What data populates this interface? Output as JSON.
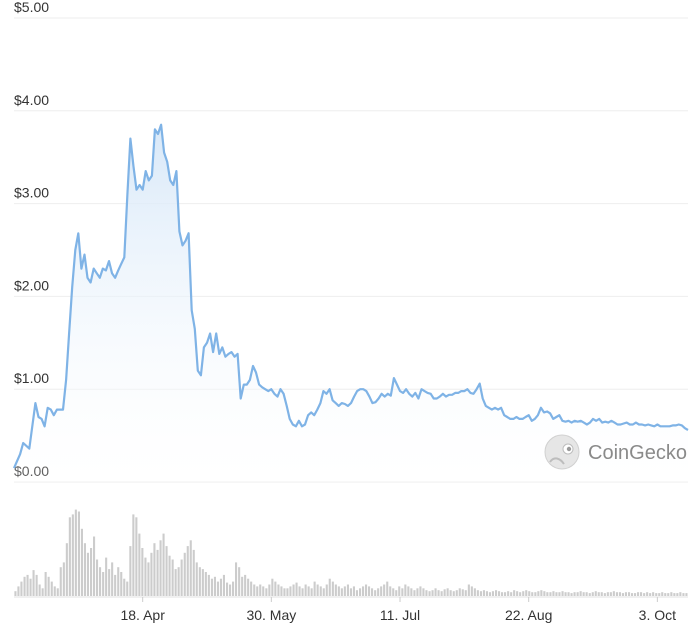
{
  "watermark": "CoinGecko",
  "chart_data": {
    "type": "area",
    "title": "",
    "xlabel": "",
    "ylabel": "",
    "y_tick_labels": [
      "$0.00",
      "$1.00",
      "$2.00",
      "$3.00",
      "$4.00",
      "$5.00"
    ],
    "y_ticks": [
      0,
      1,
      2,
      3,
      4,
      5
    ],
    "ylim": [
      0,
      5
    ],
    "x_tick_labels": [
      "18. Apr",
      "30. May",
      "11. Jul",
      "22. Aug",
      "3. Oct"
    ],
    "x_ticks_day": [
      42,
      84,
      126,
      168,
      210
    ],
    "x_range_days": [
      0,
      220
    ],
    "grid": true,
    "colors": {
      "line": "#7fb3e6",
      "area_top": "#d6e7f8",
      "volume": "#cccccc",
      "grid": "#eeeeee"
    },
    "series": [
      {
        "type": "line",
        "points": [
          [
            0,
            0.15
          ],
          [
            2,
            0.3
          ],
          [
            3,
            0.42
          ],
          [
            5,
            0.36
          ],
          [
            7,
            0.85
          ],
          [
            8,
            0.7
          ],
          [
            9,
            0.68
          ],
          [
            10,
            0.6
          ],
          [
            11,
            0.8
          ],
          [
            12,
            0.78
          ],
          [
            13,
            0.72
          ],
          [
            14,
            0.78
          ],
          [
            16,
            0.78
          ],
          [
            17,
            1.1
          ],
          [
            18,
            1.6
          ],
          [
            19,
            2.1
          ],
          [
            20,
            2.5
          ],
          [
            21,
            2.68
          ],
          [
            22,
            2.3
          ],
          [
            23,
            2.45
          ],
          [
            24,
            2.2
          ],
          [
            25,
            2.15
          ],
          [
            26,
            2.3
          ],
          [
            27,
            2.25
          ],
          [
            28,
            2.2
          ],
          [
            29,
            2.3
          ],
          [
            30,
            2.28
          ],
          [
            31,
            2.38
          ],
          [
            32,
            2.25
          ],
          [
            33,
            2.2
          ],
          [
            34,
            2.28
          ],
          [
            35,
            2.35
          ],
          [
            36,
            2.42
          ],
          [
            37,
            3.1
          ],
          [
            38,
            3.7
          ],
          [
            39,
            3.4
          ],
          [
            40,
            3.15
          ],
          [
            41,
            3.2
          ],
          [
            42,
            3.15
          ],
          [
            43,
            3.35
          ],
          [
            44,
            3.25
          ],
          [
            45,
            3.3
          ],
          [
            46,
            3.8
          ],
          [
            47,
            3.75
          ],
          [
            48,
            3.85
          ],
          [
            49,
            3.55
          ],
          [
            50,
            3.45
          ],
          [
            51,
            3.25
          ],
          [
            52,
            3.2
          ],
          [
            53,
            3.35
          ],
          [
            54,
            2.7
          ],
          [
            55,
            2.55
          ],
          [
            56,
            2.6
          ],
          [
            57,
            2.68
          ],
          [
            58,
            1.85
          ],
          [
            59,
            1.65
          ],
          [
            60,
            1.2
          ],
          [
            61,
            1.15
          ],
          [
            62,
            1.45
          ],
          [
            63,
            1.5
          ],
          [
            64,
            1.6
          ],
          [
            65,
            1.4
          ],
          [
            66,
            1.6
          ],
          [
            67,
            1.38
          ],
          [
            68,
            1.45
          ],
          [
            69,
            1.35
          ],
          [
            70,
            1.38
          ],
          [
            71,
            1.4
          ],
          [
            72,
            1.35
          ],
          [
            73,
            1.38
          ],
          [
            74,
            0.9
          ],
          [
            75,
            1.05
          ],
          [
            76,
            1.05
          ],
          [
            77,
            1.1
          ],
          [
            78,
            1.25
          ],
          [
            79,
            1.18
          ],
          [
            80,
            1.05
          ],
          [
            81,
            1.02
          ],
          [
            82,
            1.0
          ],
          [
            83,
            0.98
          ],
          [
            84,
            1.0
          ],
          [
            85,
            0.95
          ],
          [
            86,
            0.92
          ],
          [
            87,
            1.0
          ],
          [
            88,
            0.95
          ],
          [
            89,
            0.82
          ],
          [
            90,
            0.68
          ],
          [
            91,
            0.62
          ],
          [
            92,
            0.6
          ],
          [
            93,
            0.66
          ],
          [
            94,
            0.6
          ],
          [
            95,
            0.62
          ],
          [
            96,
            0.72
          ],
          [
            97,
            0.75
          ],
          [
            98,
            0.72
          ],
          [
            99,
            0.78
          ],
          [
            100,
            0.85
          ],
          [
            101,
            0.98
          ],
          [
            102,
            0.95
          ],
          [
            103,
            1.0
          ],
          [
            104,
            0.88
          ],
          [
            105,
            0.85
          ],
          [
            106,
            0.82
          ],
          [
            107,
            0.85
          ],
          [
            108,
            0.84
          ],
          [
            109,
            0.82
          ],
          [
            110,
            0.85
          ],
          [
            111,
            0.92
          ],
          [
            112,
            0.98
          ],
          [
            113,
            1.0
          ],
          [
            114,
            1.0
          ],
          [
            115,
            0.98
          ],
          [
            116,
            0.92
          ],
          [
            117,
            0.85
          ],
          [
            118,
            0.86
          ],
          [
            119,
            0.9
          ],
          [
            120,
            0.95
          ],
          [
            121,
            0.92
          ],
          [
            122,
            0.95
          ],
          [
            123,
            0.93
          ],
          [
            124,
            1.12
          ],
          [
            125,
            1.05
          ],
          [
            126,
            0.98
          ],
          [
            127,
            0.96
          ],
          [
            128,
            1.0
          ],
          [
            129,
            0.95
          ],
          [
            130,
            0.92
          ],
          [
            131,
            0.96
          ],
          [
            132,
            0.9
          ],
          [
            133,
            1.0
          ],
          [
            134,
            0.98
          ],
          [
            135,
            0.96
          ],
          [
            136,
            0.95
          ],
          [
            137,
            0.9
          ],
          [
            138,
            0.9
          ],
          [
            139,
            0.92
          ],
          [
            140,
            0.95
          ],
          [
            141,
            0.92
          ],
          [
            142,
            0.94
          ],
          [
            143,
            0.94
          ],
          [
            144,
            0.96
          ],
          [
            145,
            0.96
          ],
          [
            146,
            0.98
          ],
          [
            147,
            0.98
          ],
          [
            148,
            1.0
          ],
          [
            149,
            0.96
          ],
          [
            150,
            0.95
          ],
          [
            151,
            1.0
          ],
          [
            152,
            1.06
          ],
          [
            153,
            0.9
          ],
          [
            154,
            0.82
          ],
          [
            155,
            0.8
          ],
          [
            156,
            0.78
          ],
          [
            157,
            0.8
          ],
          [
            158,
            0.78
          ],
          [
            159,
            0.8
          ],
          [
            160,
            0.72
          ],
          [
            161,
            0.7
          ],
          [
            162,
            0.68
          ],
          [
            163,
            0.68
          ],
          [
            164,
            0.7
          ],
          [
            165,
            0.68
          ],
          [
            166,
            0.68
          ],
          [
            167,
            0.7
          ],
          [
            168,
            0.72
          ],
          [
            169,
            0.66
          ],
          [
            170,
            0.68
          ],
          [
            171,
            0.72
          ],
          [
            172,
            0.8
          ],
          [
            173,
            0.75
          ],
          [
            174,
            0.76
          ],
          [
            175,
            0.74
          ],
          [
            176,
            0.68
          ],
          [
            177,
            0.7
          ],
          [
            178,
            0.72
          ],
          [
            179,
            0.66
          ],
          [
            180,
            0.65
          ],
          [
            181,
            0.66
          ],
          [
            182,
            0.64
          ],
          [
            183,
            0.66
          ],
          [
            184,
            0.65
          ],
          [
            185,
            0.66
          ],
          [
            186,
            0.64
          ],
          [
            187,
            0.62
          ],
          [
            188,
            0.64
          ],
          [
            189,
            0.68
          ],
          [
            190,
            0.66
          ],
          [
            191,
            0.68
          ],
          [
            192,
            0.64
          ],
          [
            193,
            0.65
          ],
          [
            194,
            0.64
          ],
          [
            195,
            0.66
          ],
          [
            196,
            0.64
          ],
          [
            197,
            0.62
          ],
          [
            198,
            0.62
          ],
          [
            199,
            0.63
          ],
          [
            200,
            0.64
          ],
          [
            201,
            0.62
          ],
          [
            202,
            0.62
          ],
          [
            203,
            0.64
          ],
          [
            204,
            0.62
          ],
          [
            205,
            0.62
          ],
          [
            206,
            0.61
          ],
          [
            207,
            0.62
          ],
          [
            208,
            0.61
          ],
          [
            209,
            0.6
          ],
          [
            210,
            0.62
          ],
          [
            211,
            0.6
          ],
          [
            212,
            0.6
          ],
          [
            213,
            0.6
          ],
          [
            214,
            0.6
          ],
          [
            215,
            0.61
          ],
          [
            216,
            0.61
          ],
          [
            217,
            0.62
          ],
          [
            218,
            0.61
          ],
          [
            219,
            0.58
          ],
          [
            220,
            0.56
          ]
        ]
      },
      {
        "type": "volume_bars",
        "values": [
          0.05,
          0.1,
          0.15,
          0.2,
          0.22,
          0.18,
          0.27,
          0.22,
          0.12,
          0.08,
          0.25,
          0.2,
          0.15,
          0.1,
          0.08,
          0.3,
          0.35,
          0.55,
          0.82,
          0.85,
          0.9,
          0.88,
          0.7,
          0.55,
          0.45,
          0.5,
          0.62,
          0.38,
          0.3,
          0.25,
          0.4,
          0.28,
          0.35,
          0.22,
          0.3,
          0.25,
          0.18,
          0.15,
          0.52,
          0.85,
          0.82,
          0.65,
          0.5,
          0.4,
          0.35,
          0.45,
          0.55,
          0.48,
          0.58,
          0.65,
          0.52,
          0.42,
          0.38,
          0.28,
          0.3,
          0.38,
          0.45,
          0.52,
          0.58,
          0.48,
          0.35,
          0.3,
          0.28,
          0.25,
          0.22,
          0.18,
          0.2,
          0.15,
          0.18,
          0.22,
          0.14,
          0.12,
          0.15,
          0.35,
          0.3,
          0.2,
          0.22,
          0.18,
          0.15,
          0.12,
          0.1,
          0.12,
          0.1,
          0.08,
          0.12,
          0.18,
          0.15,
          0.12,
          0.1,
          0.08,
          0.08,
          0.1,
          0.12,
          0.14,
          0.1,
          0.08,
          0.12,
          0.1,
          0.08,
          0.15,
          0.12,
          0.1,
          0.08,
          0.12,
          0.18,
          0.15,
          0.12,
          0.1,
          0.08,
          0.1,
          0.12,
          0.08,
          0.1,
          0.06,
          0.08,
          0.1,
          0.12,
          0.1,
          0.08,
          0.06,
          0.08,
          0.1,
          0.12,
          0.15,
          0.1,
          0.08,
          0.06,
          0.1,
          0.08,
          0.12,
          0.1,
          0.08,
          0.06,
          0.08,
          0.1,
          0.08,
          0.06,
          0.05,
          0.06,
          0.08,
          0.06,
          0.05,
          0.07,
          0.08,
          0.06,
          0.05,
          0.06,
          0.08,
          0.07,
          0.06,
          0.12,
          0.1,
          0.08,
          0.06,
          0.05,
          0.06,
          0.05,
          0.04,
          0.05,
          0.06,
          0.05,
          0.04,
          0.04,
          0.05,
          0.04,
          0.06,
          0.05,
          0.04,
          0.05,
          0.06,
          0.05,
          0.04,
          0.04,
          0.05,
          0.06,
          0.05,
          0.04,
          0.04,
          0.05,
          0.04,
          0.04,
          0.05,
          0.04,
          0.04,
          0.03,
          0.04,
          0.04,
          0.05,
          0.04,
          0.04,
          0.03,
          0.04,
          0.05,
          0.04,
          0.04,
          0.03,
          0.04,
          0.04,
          0.05,
          0.04,
          0.04,
          0.03,
          0.04,
          0.04,
          0.03,
          0.03,
          0.04,
          0.04,
          0.03,
          0.04,
          0.03,
          0.04,
          0.03,
          0.03,
          0.04,
          0.03,
          0.03,
          0.04,
          0.03,
          0.03,
          0.04,
          0.03,
          0.03
        ]
      }
    ]
  }
}
